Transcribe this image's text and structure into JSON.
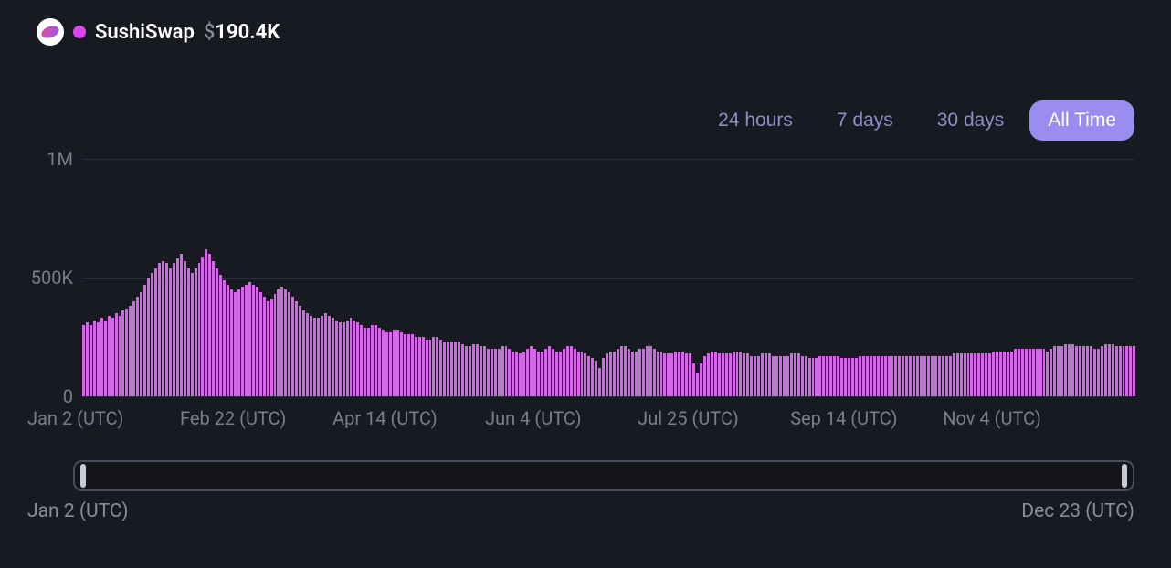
{
  "header": {
    "logo_name": "sushiswap-logo",
    "dot_color": "#d946ef",
    "series_name": "SushiSwap",
    "currency_symbol": "$",
    "value": "190.4K"
  },
  "range_tabs": [
    {
      "label": "24 hours",
      "active": false
    },
    {
      "label": "7 days",
      "active": false
    },
    {
      "label": "30 days",
      "active": false
    },
    {
      "label": "All Time",
      "active": true
    }
  ],
  "chart": {
    "type": "bar",
    "bar_color": "#d566e8",
    "background_color": "#181a22",
    "grid_color": "#2a2d3a",
    "ylim": [
      0,
      1000000
    ],
    "y_ticks": [
      {
        "value": 0,
        "label": "0"
      },
      {
        "value": 500000,
        "label": "500K"
      },
      {
        "value": 1000000,
        "label": "1M"
      }
    ],
    "x_ticks": [
      {
        "pos": 0.0,
        "label": "Jan 2 (UTC)"
      },
      {
        "pos": 0.145,
        "label": "Feb 22 (UTC)"
      },
      {
        "pos": 0.29,
        "label": "Apr 14 (UTC)"
      },
      {
        "pos": 0.435,
        "label": "Jun 4 (UTC)"
      },
      {
        "pos": 0.58,
        "label": "Jul 25 (UTC)"
      },
      {
        "pos": 0.725,
        "label": "Sep 14 (UTC)"
      },
      {
        "pos": 0.87,
        "label": "Nov 4 (UTC)"
      }
    ],
    "values": [
      300000,
      310000,
      300000,
      320000,
      310000,
      330000,
      320000,
      340000,
      330000,
      350000,
      340000,
      360000,
      370000,
      380000,
      400000,
      420000,
      440000,
      470000,
      500000,
      520000,
      540000,
      560000,
      570000,
      560000,
      540000,
      560000,
      580000,
      600000,
      570000,
      540000,
      520000,
      540000,
      560000,
      590000,
      620000,
      600000,
      570000,
      540000,
      510000,
      490000,
      470000,
      450000,
      440000,
      450000,
      460000,
      470000,
      480000,
      470000,
      460000,
      440000,
      420000,
      400000,
      410000,
      430000,
      450000,
      460000,
      450000,
      440000,
      420000,
      400000,
      380000,
      360000,
      350000,
      340000,
      330000,
      330000,
      340000,
      350000,
      340000,
      330000,
      320000,
      310000,
      310000,
      320000,
      330000,
      320000,
      310000,
      300000,
      290000,
      290000,
      300000,
      300000,
      290000,
      280000,
      270000,
      270000,
      280000,
      280000,
      270000,
      260000,
      260000,
      260000,
      250000,
      250000,
      250000,
      240000,
      240000,
      250000,
      250000,
      240000,
      230000,
      230000,
      230000,
      230000,
      230000,
      220000,
      210000,
      210000,
      220000,
      220000,
      210000,
      210000,
      200000,
      200000,
      200000,
      200000,
      210000,
      210000,
      200000,
      190000,
      190000,
      180000,
      190000,
      200000,
      210000,
      200000,
      190000,
      190000,
      200000,
      210000,
      200000,
      190000,
      190000,
      200000,
      210000,
      210000,
      200000,
      190000,
      190000,
      180000,
      170000,
      160000,
      150000,
      120000,
      160000,
      180000,
      190000,
      190000,
      200000,
      210000,
      210000,
      200000,
      190000,
      190000,
      200000,
      200000,
      210000,
      210000,
      200000,
      190000,
      190000,
      180000,
      180000,
      180000,
      190000,
      190000,
      190000,
      180000,
      180000,
      140000,
      100000,
      140000,
      170000,
      180000,
      190000,
      190000,
      180000,
      180000,
      180000,
      180000,
      190000,
      190000,
      190000,
      180000,
      180000,
      170000,
      170000,
      170000,
      180000,
      180000,
      180000,
      170000,
      170000,
      170000,
      170000,
      170000,
      180000,
      180000,
      180000,
      170000,
      170000,
      160000,
      160000,
      160000,
      170000,
      170000,
      170000,
      170000,
      170000,
      170000,
      160000,
      160000,
      160000,
      160000,
      160000,
      170000,
      170000,
      170000,
      170000,
      170000,
      170000,
      170000,
      170000,
      170000,
      170000,
      170000,
      170000,
      170000,
      170000,
      170000,
      170000,
      170000,
      170000,
      170000,
      170000,
      170000,
      170000,
      170000,
      170000,
      170000,
      170000,
      180000,
      180000,
      180000,
      180000,
      180000,
      180000,
      180000,
      180000,
      180000,
      180000,
      180000,
      190000,
      190000,
      190000,
      190000,
      190000,
      190000,
      200000,
      200000,
      200000,
      200000,
      200000,
      200000,
      200000,
      200000,
      200000,
      190000,
      200000,
      210000,
      210000,
      210000,
      220000,
      220000,
      220000,
      210000,
      210000,
      210000,
      210000,
      210000,
      200000,
      200000,
      210000,
      220000,
      220000,
      220000,
      210000,
      210000,
      210000,
      210000,
      210000,
      210000
    ]
  },
  "scrubber": {
    "start_label": "Jan 2 (UTC)",
    "end_label": "Dec 23 (UTC)",
    "handle_left_pct": 0.5,
    "handle_right_pct": 99.0,
    "track_color": "#14161c",
    "border_color": "#4a4d5a",
    "handle_color": "#c8cad6"
  },
  "colors": {
    "text_muted": "#7a7d8a",
    "text_primary": "#ffffff",
    "tab_inactive": "#8b8fc7",
    "tab_active_bg": "#9b8cf0"
  }
}
